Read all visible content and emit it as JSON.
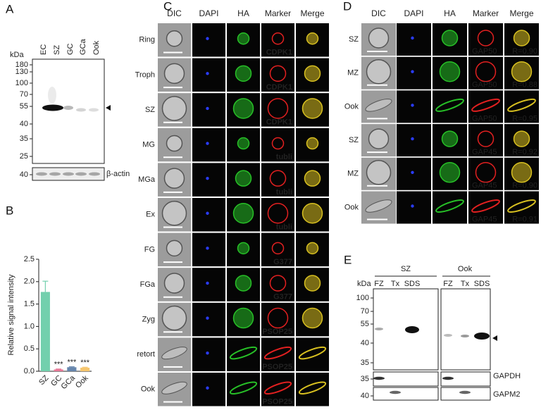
{
  "panel_labels": [
    "A",
    "B",
    "C",
    "D",
    "E"
  ],
  "panel_a": {
    "lanes": [
      "EC",
      "SZ",
      "GC",
      "GCa",
      "Ook"
    ],
    "unit": "kDa",
    "ladder": [
      180,
      130,
      100,
      70,
      55,
      40,
      35,
      25
    ],
    "loading_ladder": 40,
    "loading_label": "β-actin"
  },
  "chart_data": {
    "type": "bar",
    "y_label": "Relative signal intensity",
    "categories": [
      "SZ",
      "GC",
      "GCa",
      "Ook"
    ],
    "values": [
      1.77,
      0.04,
      0.09,
      0.08
    ],
    "errors": [
      0.24,
      0.01,
      0.01,
      0.01
    ],
    "colors": [
      "#72d0ad",
      "#e77795",
      "#6686ad",
      "#f6c66e"
    ],
    "ylim": [
      0,
      2.5
    ],
    "yticks": [
      {
        "value": 0,
        "label": "0.0"
      },
      0.5,
      {
        "value": 1,
        "label": "1.0"
      },
      1.5,
      {
        "value": 2,
        "label": "2.0"
      },
      2.5
    ],
    "annotations": [
      {
        "category": "GC",
        "text": "***"
      },
      {
        "category": "GCa",
        "text": "***"
      },
      {
        "category": "Ook",
        "text": "***"
      }
    ]
  },
  "panel_c": {
    "headers": [
      "DIC",
      "DAPI",
      "HA",
      "Marker",
      "Merge"
    ],
    "rows": [
      {
        "label": "Ring",
        "marker": "CDPK1"
      },
      {
        "label": "Troph",
        "marker": "CDPK1"
      },
      {
        "label": "SZ",
        "marker": "CDPK1"
      },
      {
        "label": "MG",
        "marker": "tubli"
      },
      {
        "label": "MGa",
        "marker": "tubli"
      },
      {
        "label": "Ex",
        "marker": "tubli"
      },
      {
        "label": "FG",
        "marker": "G377"
      },
      {
        "label": "FGa",
        "marker": "G377"
      },
      {
        "label": "Zyg",
        "marker": "PSOP25"
      },
      {
        "label": "retort",
        "marker": "PSOP25"
      },
      {
        "label": "Ook",
        "marker": "PSOP25"
      }
    ]
  },
  "panel_d": {
    "headers": [
      "DIC",
      "DAPI",
      "HA",
      "Marker",
      "Merge"
    ],
    "rows": [
      {
        "label": "SZ",
        "marker": "GAP50",
        "r": "R=0.90"
      },
      {
        "label": "MZ",
        "marker": "GAP50",
        "r": "R=0.88"
      },
      {
        "label": "Ook",
        "marker": "GAP50",
        "r": "R=0.95"
      },
      {
        "label": "SZ",
        "marker": "GAP45",
        "r": "R=0.92"
      },
      {
        "label": "MZ",
        "marker": "GAP45",
        "r": "R=0.90"
      },
      {
        "label": "Ook",
        "marker": "GAP45",
        "r": "R=0.91"
      }
    ]
  },
  "panel_e": {
    "groups": [
      "SZ",
      "Ook"
    ],
    "lanes": [
      "FZ",
      "Tx",
      "SDS",
      "FZ",
      "Tx",
      "SDS"
    ],
    "unit": "kDa",
    "ladder": [
      100,
      70,
      55,
      40,
      35
    ],
    "strips": [
      {
        "ladder": 35,
        "label": "GAPDH"
      },
      {
        "ladder": 40,
        "label": "GAPM2"
      }
    ]
  }
}
